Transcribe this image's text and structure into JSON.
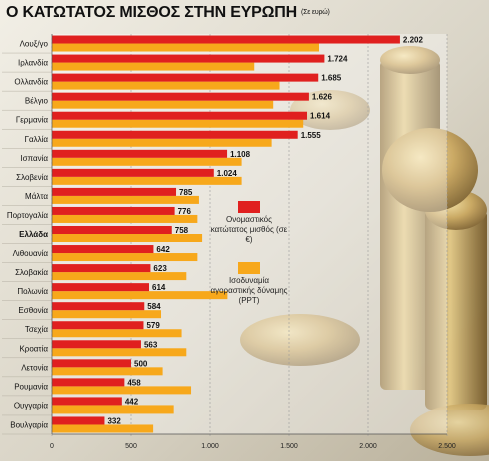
{
  "chart_data": {
    "type": "bar",
    "title": "Ο ΚΑΤΩΤΑΤΟΣ ΜΙΣΘΟΣ ΣΤΗΝ ΕΥΡΩΠΗ",
    "subtitle": "(Σε ευρώ)",
    "orientation": "horizontal",
    "categories": [
      "Λουξ/γο",
      "Ιρλανδία",
      "Ολλανδία",
      "Βέλγιο",
      "Γερμανία",
      "Γαλλία",
      "Ισπανία",
      "Σλοβενία",
      "Μάλτα",
      "Πορτογαλία",
      "Ελλάδα",
      "Λιθουανία",
      "Σλοβακία",
      "Πολωνία",
      "Εσθονία",
      "Τσεχία",
      "Κροατία",
      "Λετονία",
      "Ρουμανία",
      "Ουγγαρία",
      "Βουλγαρία"
    ],
    "highlight_category": "Ελλάδα",
    "series": [
      {
        "name": "Ονομαστικός κατώτατος μισθός (σε €)",
        "color": "#e0201f",
        "values": [
          2202,
          1724,
          1685,
          1626,
          1614,
          1555,
          1108,
          1024,
          785,
          776,
          758,
          642,
          623,
          614,
          584,
          579,
          563,
          500,
          458,
          442,
          332
        ],
        "value_labels": [
          "2.202",
          "1.724",
          "1.685",
          "1.626",
          "1.614",
          "1.555",
          "1.108",
          "1.024",
          "785",
          "776",
          "758",
          "642",
          "623",
          "614",
          "584",
          "579",
          "563",
          "500",
          "458",
          "442",
          "332"
        ]
      },
      {
        "name": "Ισοδυναμία αγοραστικής δύναμης (PPT)",
        "color": "#f7a81b",
        "values": [
          1690,
          1280,
          1440,
          1400,
          1590,
          1390,
          1200,
          1200,
          930,
          920,
          950,
          920,
          850,
          1110,
          690,
          820,
          850,
          700,
          880,
          770,
          640
        ]
      }
    ],
    "xlim": [
      0,
      2500
    ],
    "xticks": [
      "0",
      "500",
      "1.000",
      "1.500",
      "2.000",
      "2.500"
    ],
    "xtick_values": [
      0,
      500,
      1000,
      1500,
      2000,
      2500
    ],
    "grid": true,
    "legend": "right-middle"
  }
}
